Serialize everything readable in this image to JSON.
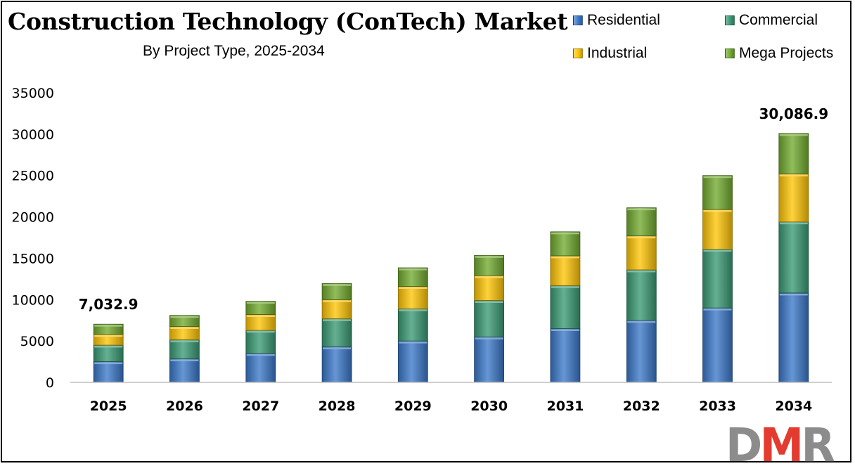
{
  "title": "Construction Technology (ConTech) Market",
  "subtitle": "By Project Type, 2025-2034",
  "colors": {
    "residential": "#3b78c9",
    "commercial": "#3a9a74",
    "industrial": "#ffc505",
    "mega": "#72ab2f",
    "axis": "#bfbfbf",
    "logo_gray": "#8c8c8c",
    "logo_red": "#e33b30"
  },
  "logo": {
    "text": "DMR"
  },
  "chart_data": {
    "type": "bar",
    "stacked": true,
    "categories": [
      "2025",
      "2026",
      "2027",
      "2028",
      "2029",
      "2030",
      "2031",
      "2032",
      "2033",
      "2034"
    ],
    "series": [
      {
        "name": "Residential",
        "color": "#3b78c9",
        "values": [
          2500,
          2850,
          3500,
          4300,
          5000,
          5500,
          6500,
          7500,
          9000,
          10800
        ]
      },
      {
        "name": "Commercial",
        "color": "#3a9a74",
        "values": [
          2000,
          2300,
          2800,
          3400,
          3900,
          4400,
          5200,
          6100,
          7100,
          8600
        ]
      },
      {
        "name": "Industrial",
        "color": "#ffc505",
        "values": [
          1300,
          1600,
          1900,
          2300,
          2700,
          3000,
          3600,
          4100,
          4800,
          5800
        ]
      },
      {
        "name": "Mega Projects",
        "color": "#72ab2f",
        "values": [
          1232.9,
          1350,
          1600,
          1950,
          2250,
          2450,
          2900,
          3400,
          4100,
          4886.9
        ]
      }
    ],
    "data_labels": [
      {
        "category": "2025",
        "text": "7,032.9"
      },
      {
        "category": "2034",
        "text": "30,086.9"
      }
    ],
    "yticks": [
      "0",
      "5000",
      "10000",
      "15000",
      "20000",
      "25000",
      "30000",
      "35000"
    ],
    "ylim": [
      0,
      35000
    ],
    "grid": false,
    "legend": "top-right"
  }
}
